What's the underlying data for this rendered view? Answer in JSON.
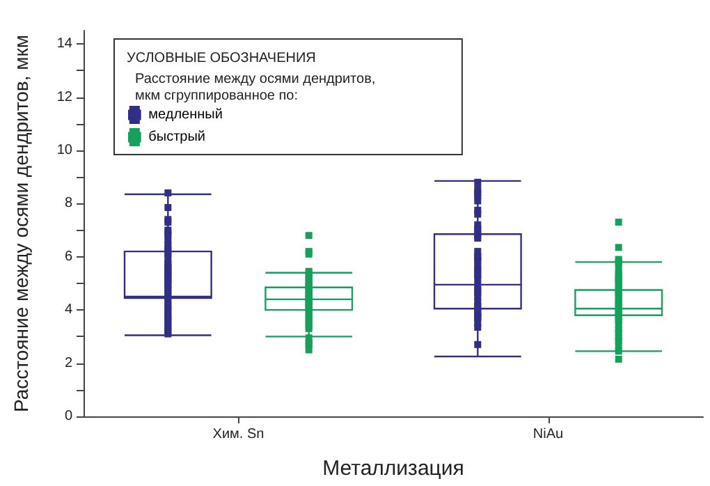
{
  "chart_data": {
    "type": "box",
    "xlabel": "Металлизация",
    "ylabel": "Расстояние между осями дендритов, мкм",
    "legend_title": "УСЛОВНЫЕ ОБОЗНАЧЕНИЯ",
    "annotations": [
      "Расстояние между осями дендритов,\nмкм сгруппированное по:"
    ],
    "legend": "top left",
    "marker": "square",
    "categories": [
      "Хим. Sn",
      "NiAu"
    ],
    "ylim": [
      0,
      14.5
    ],
    "yticks": [
      0,
      {
        "value": 1,
        "label": null
      },
      2,
      {
        "value": 3,
        "label": null
      },
      4,
      {
        "value": 5,
        "label": null
      },
      6,
      {
        "value": 7,
        "label": null
      },
      8,
      {
        "value": 9,
        "label": null
      },
      10,
      {
        "value": 11,
        "label": null
      },
      12,
      {
        "value": 13,
        "label": null
      },
      14
    ],
    "series": [
      {
        "type": "box",
        "name": "медленный",
        "color": "#2e2f85",
        "boxes": [
          {
            "low": 3.05,
            "q1": 4.45,
            "median": 4.5,
            "q3": 6.2,
            "high": 8.35
          },
          {
            "low": 2.25,
            "q1": 4.05,
            "median": 4.95,
            "q3": 6.85,
            "high": 8.85
          }
        ]
      },
      {
        "type": "box",
        "name": "быстрый",
        "color": "#17a05a",
        "boxes": [
          {
            "low": 3.0,
            "q1": 4.0,
            "median": 4.4,
            "q3": 4.85,
            "high": 5.4
          },
          {
            "low": 2.45,
            "q1": 3.8,
            "median": 4.05,
            "q3": 4.75,
            "high": 5.8
          }
        ]
      },
      {
        "type": "scatter",
        "color": "#2e2f85",
        "x": [
          "Хим. Sn",
          "Хим. Sn",
          "Хим. Sn",
          "Хим. Sn",
          "Хим. Sn",
          "Хим. Sn",
          "Хим. Sn",
          "Хим. Sn",
          "Хим. Sn",
          "Хим. Sn",
          "Хим. Sn",
          "Хим. Sn",
          "Хим. Sn",
          "Хим. Sn",
          "Хим. Sn",
          "Хим. Sn",
          "Хим. Sn",
          "Хим. Sn",
          "Хим. Sn",
          "Хим. Sn",
          "Хим. Sn",
          "Хим. Sn",
          "Хим. Sn",
          "Хим. Sn",
          "Хим. Sn",
          "Хим. Sn",
          "Хим. Sn",
          "Хим. Sn",
          "Хим. Sn",
          "Хим. Sn",
          "Хим. Sn",
          "Хим. Sn",
          "Хим. Sn",
          "Хим. Sn",
          "Хим. Sn",
          "Хим. Sn",
          "Хим. Sn",
          "Хим. Sn",
          "Хим. Sn",
          "Хим. Sn",
          "NiAu",
          "NiAu",
          "NiAu",
          "NiAu",
          "NiAu",
          "NiAu",
          "NiAu",
          "NiAu",
          "NiAu",
          "NiAu",
          "NiAu",
          "NiAu",
          "NiAu",
          "NiAu",
          "NiAu",
          "NiAu",
          "NiAu",
          "NiAu",
          "NiAu",
          "NiAu",
          "NiAu",
          "NiAu",
          "NiAu",
          "NiAu",
          "NiAu",
          "NiAu",
          "NiAu",
          "NiAu",
          "NiAu",
          "NiAu",
          "NiAu",
          "NiAu",
          "NiAu",
          "NiAu",
          "NiAu"
        ],
        "values": [
          8.4,
          7.85,
          7.4,
          7.3,
          7.0,
          6.9,
          6.8,
          6.6,
          6.45,
          6.3,
          6.2,
          6.1,
          5.95,
          5.75,
          5.7,
          5.6,
          5.5,
          5.45,
          5.35,
          5.3,
          5.2,
          5.1,
          5.05,
          4.95,
          4.8,
          4.75,
          4.6,
          4.5,
          4.35,
          4.2,
          4.1,
          4.0,
          3.85,
          3.75,
          3.65,
          3.55,
          3.4,
          3.3,
          3.2,
          3.1,
          8.8,
          8.55,
          8.4,
          8.3,
          8.1,
          7.75,
          7.6,
          7.2,
          7.05,
          6.95,
          6.8,
          6.7,
          6.2,
          6.0,
          5.95,
          5.85,
          5.65,
          5.55,
          5.4,
          5.3,
          5.15,
          4.9,
          4.75,
          4.65,
          4.5,
          4.3,
          4.15,
          4.05,
          3.9,
          3.8,
          3.75,
          3.7,
          3.5,
          3.35,
          2.7
        ]
      },
      {
        "type": "scatter",
        "color": "#17a05a",
        "x": [
          "Хим. Sn",
          "Хим. Sn",
          "Хим. Sn",
          "Хим. Sn",
          "Хим. Sn",
          "Хим. Sn",
          "Хим. Sn",
          "Хим. Sn",
          "Хим. Sn",
          "Хим. Sn",
          "Хим. Sn",
          "Хим. Sn",
          "Хим. Sn",
          "Хим. Sn",
          "Хим. Sn",
          "Хим. Sn",
          "Хим. Sn",
          "Хим. Sn",
          "Хим. Sn",
          "Хим. Sn",
          "Хим. Sn",
          "Хим. Sn",
          "Хим. Sn",
          "Хим. Sn",
          "Хим. Sn",
          "Хим. Sn",
          "Хим. Sn",
          "Хим. Sn",
          "Хим. Sn",
          "Хим. Sn",
          "Хим. Sn",
          "Хим. Sn",
          "Хим. Sn",
          "NiAu",
          "NiAu",
          "NiAu",
          "NiAu",
          "NiAu",
          "NiAu",
          "NiAu",
          "NiAu",
          "NiAu",
          "NiAu",
          "NiAu",
          "NiAu",
          "NiAu",
          "NiAu",
          "NiAu",
          "NiAu",
          "NiAu",
          "NiAu",
          "NiAu",
          "NiAu",
          "NiAu",
          "NiAu",
          "NiAu",
          "NiAu",
          "NiAu",
          "NiAu",
          "NiAu",
          "NiAu",
          "NiAu",
          "NiAu",
          "NiAu",
          "NiAu",
          "NiAu"
        ],
        "values": [
          6.8,
          6.2,
          6.1,
          5.45,
          5.35,
          5.25,
          5.15,
          5.05,
          4.95,
          4.9,
          4.85,
          4.75,
          4.7,
          4.6,
          4.55,
          4.45,
          4.4,
          4.3,
          4.25,
          4.15,
          4.1,
          4.05,
          3.9,
          3.85,
          3.7,
          3.6,
          3.5,
          3.4,
          3.3,
          2.95,
          2.75,
          2.7,
          2.5,
          7.3,
          6.35,
          5.9,
          5.8,
          5.75,
          5.5,
          5.35,
          5.25,
          5.15,
          5.1,
          5.0,
          4.85,
          4.75,
          4.65,
          4.6,
          4.45,
          4.35,
          4.25,
          4.15,
          4.05,
          3.95,
          3.9,
          3.8,
          3.7,
          3.6,
          3.45,
          3.25,
          3.15,
          2.95,
          2.85,
          2.65,
          2.45,
          2.15
        ]
      }
    ]
  }
}
